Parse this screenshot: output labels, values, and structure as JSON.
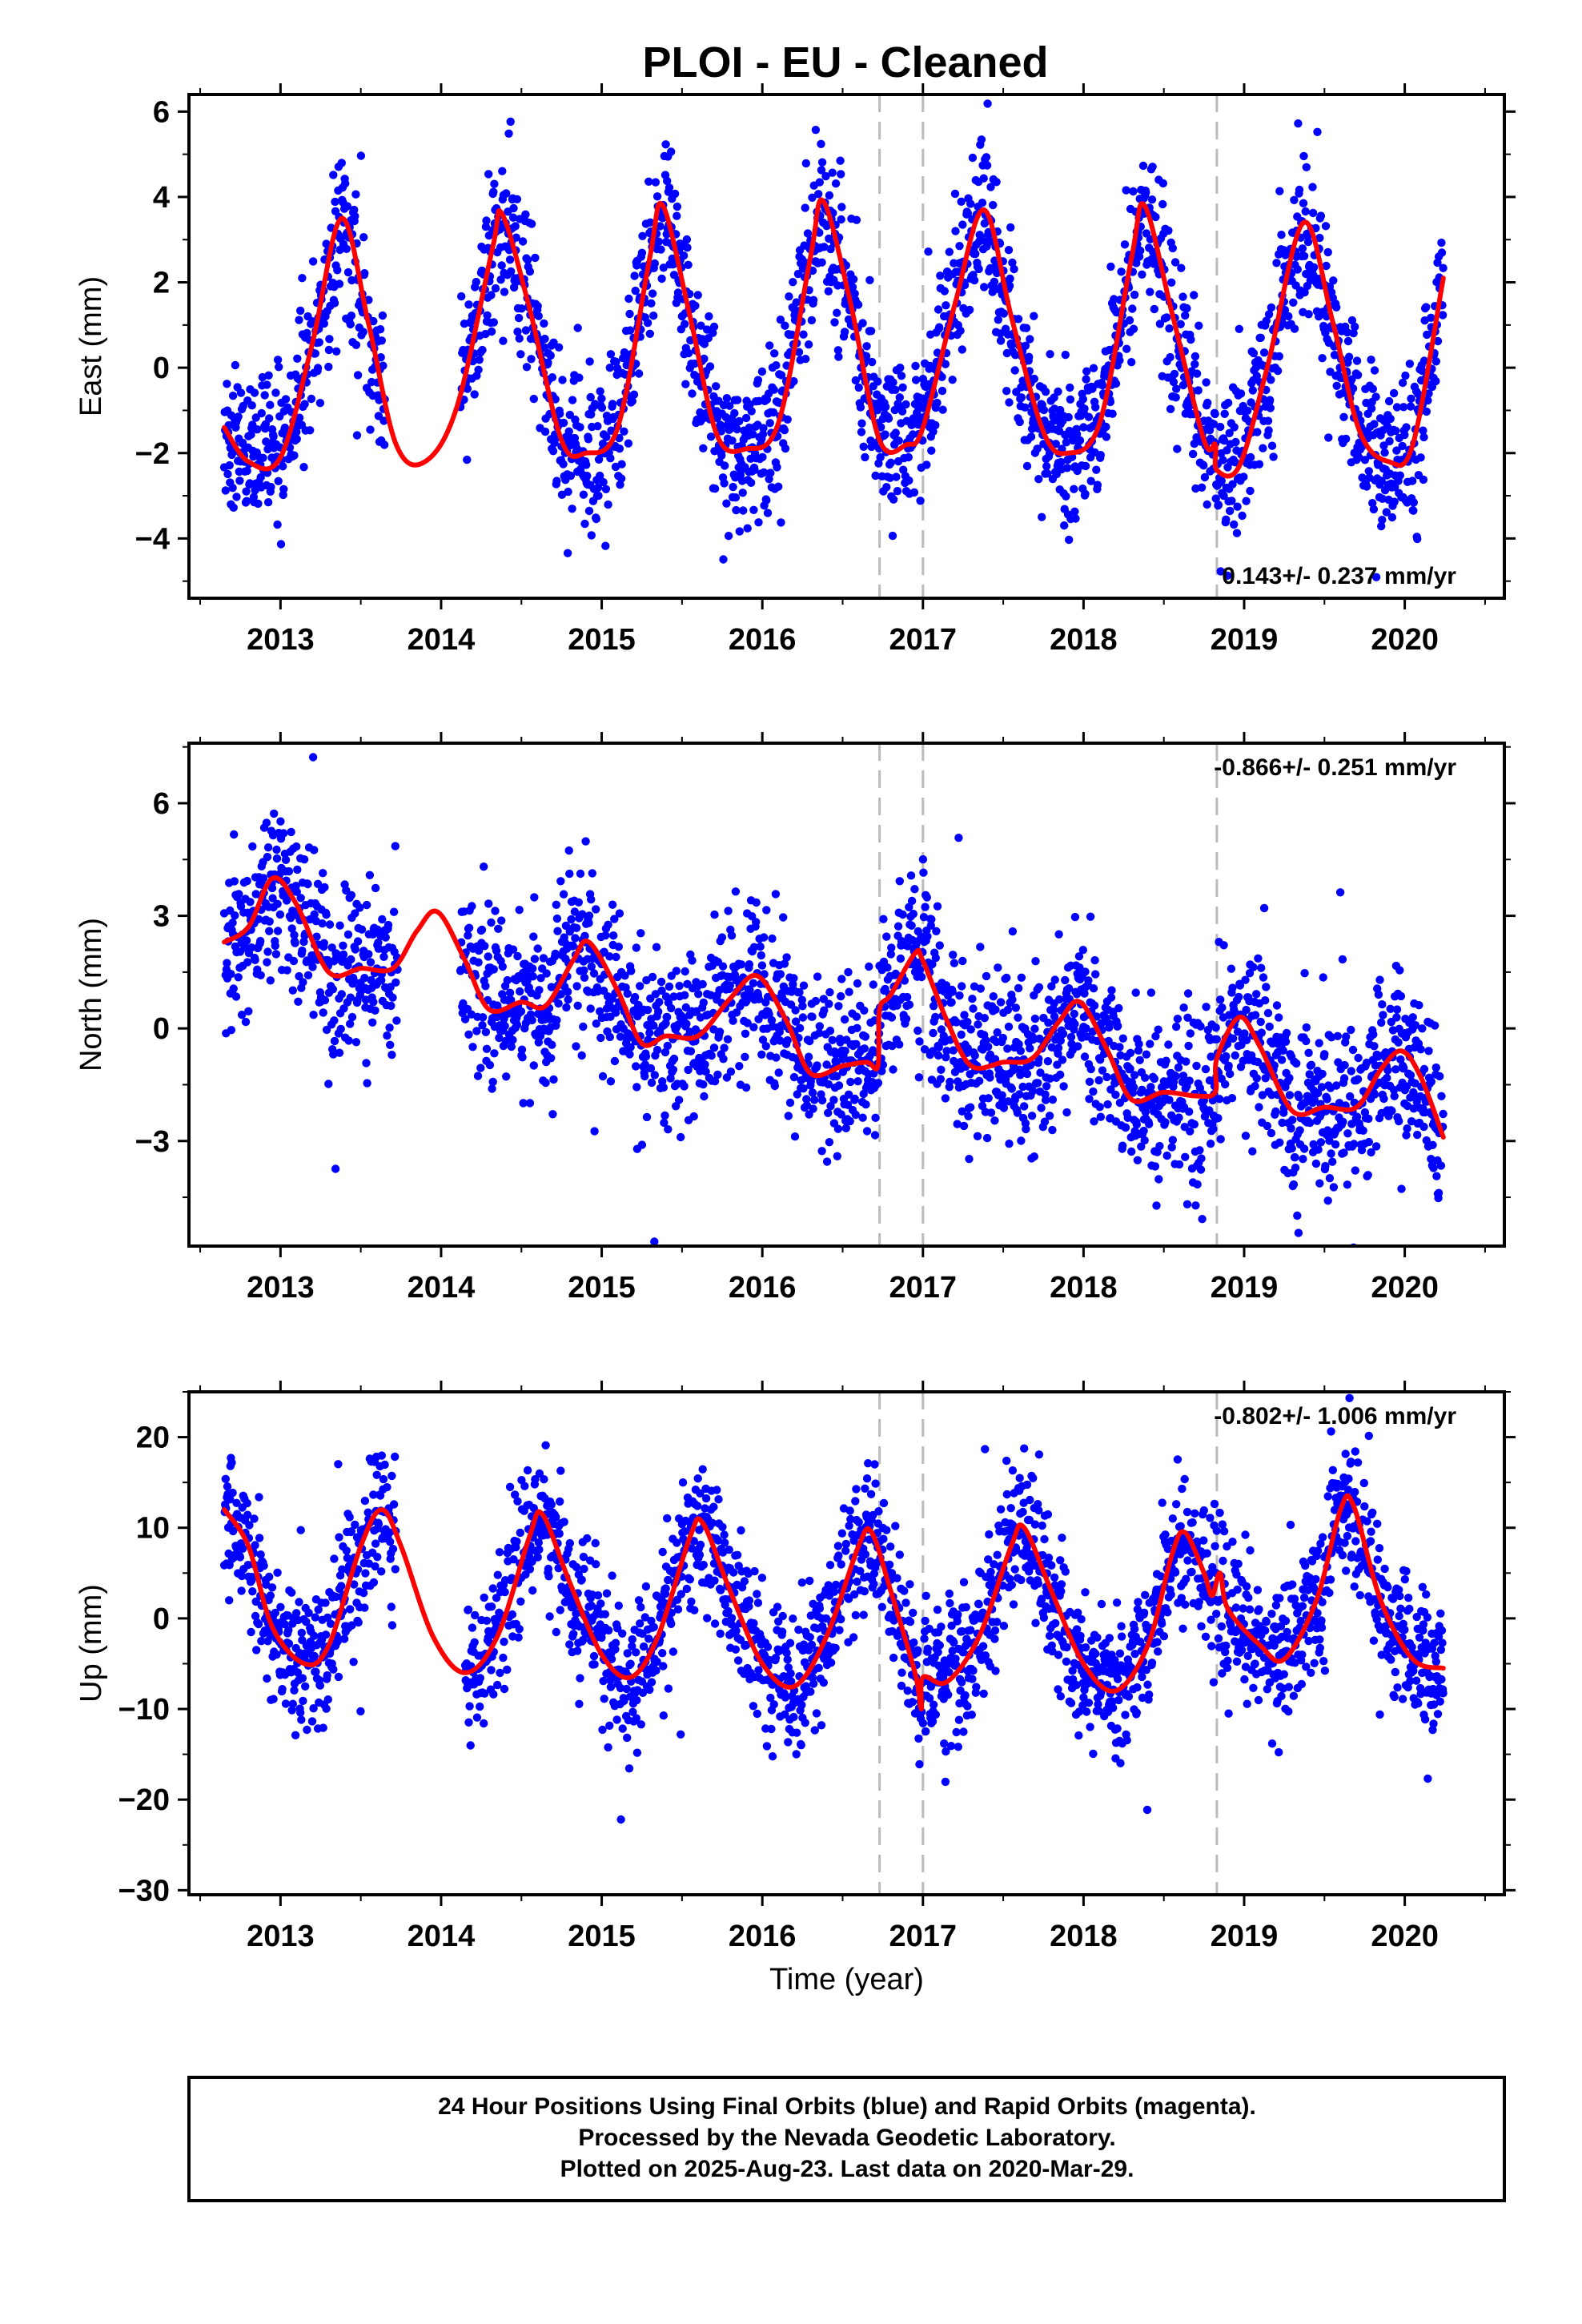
{
  "figure": {
    "title": "PLOI  - EU - Cleaned",
    "footer": [
      "24 Hour Positions Using Final Orbits (blue) and Rapid Orbits (magenta).",
      "Processed by the Nevada Geodetic Laboratory.",
      "Plotted on 2025-Aug-23. Last data on 2020-Mar-29."
    ]
  },
  "colors": {
    "points": "#0000ff",
    "fit": "#ff0000",
    "event_lines": "#bbbbbb",
    "frame": "#000000"
  },
  "chart_data": [
    {
      "type": "scatter",
      "name": "east",
      "ylabel": "East (mm)",
      "xlabel": "",
      "rate_text": "0.143+/- 0.237 mm/yr",
      "rate_position": "bottom-right",
      "xlim": [
        2012.43,
        2020.62
      ],
      "ylim": [
        -5.4,
        6.4
      ],
      "xticks": [
        2013,
        2014,
        2015,
        2016,
        2017,
        2018,
        2019,
        2020
      ],
      "yticks": [
        -4,
        -2,
        0,
        2,
        4,
        6
      ],
      "grid": false,
      "event_lines": [
        2016.73,
        2017.0,
        2018.83
      ],
      "model": {
        "offset": 0.7,
        "amp1": 2.7,
        "phase1": 2013.1,
        "amp2": 0.8,
        "phase2": 2013.35,
        "noise": 0.9,
        "gap": [
          2013.65,
          2014.12
        ]
      },
      "fit_knots": [
        [
          2012.65,
          -1.4
        ],
        [
          2012.8,
          -2.2
        ],
        [
          2013.0,
          -2.1
        ],
        [
          2013.2,
          0.6
        ],
        [
          2013.38,
          3.5
        ],
        [
          2013.55,
          1.0
        ],
        [
          2013.72,
          -1.8
        ],
        [
          2013.9,
          -2.2
        ],
        [
          2014.1,
          -0.9
        ],
        [
          2014.32,
          2.8
        ],
        [
          2014.38,
          3.6
        ],
        [
          2014.55,
          1.4
        ],
        [
          2014.75,
          -1.7
        ],
        [
          2014.9,
          -2.0
        ],
        [
          2015.1,
          -1.4
        ],
        [
          2015.3,
          2.6
        ],
        [
          2015.38,
          3.8
        ],
        [
          2015.55,
          1.2
        ],
        [
          2015.72,
          -1.6
        ],
        [
          2015.9,
          -1.9
        ],
        [
          2016.1,
          -1.3
        ],
        [
          2016.3,
          2.6
        ],
        [
          2016.38,
          3.9
        ],
        [
          2016.55,
          1.5
        ],
        [
          2016.73,
          -1.7
        ],
        [
          2016.9,
          -1.8
        ],
        [
          2017.0,
          -1.4
        ],
        [
          2017.2,
          1.5
        ],
        [
          2017.38,
          3.7
        ],
        [
          2017.55,
          1.2
        ],
        [
          2017.75,
          -1.5
        ],
        [
          2017.9,
          -2.0
        ],
        [
          2018.1,
          -1.3
        ],
        [
          2018.3,
          2.6
        ],
        [
          2018.38,
          3.8
        ],
        [
          2018.55,
          1.3
        ],
        [
          2018.75,
          -1.7
        ],
        [
          2018.82,
          -1.8
        ],
        [
          2018.83,
          -2.4
        ],
        [
          2018.97,
          -2.3
        ],
        [
          2019.15,
          0.1
        ],
        [
          2019.37,
          3.4
        ],
        [
          2019.55,
          1.1
        ],
        [
          2019.72,
          -1.5
        ],
        [
          2019.9,
          -2.2
        ],
        [
          2020.05,
          -1.8
        ],
        [
          2020.24,
          2.1
        ]
      ]
    },
    {
      "type": "scatter",
      "name": "north",
      "ylabel": "North (mm)",
      "xlabel": "",
      "rate_text": "-0.866+/- 0.251 mm/yr",
      "rate_position": "top-right",
      "xlim": [
        2012.43,
        2020.62
      ],
      "ylim": [
        -5.8,
        7.6
      ],
      "xticks": [
        2013,
        2014,
        2015,
        2016,
        2017,
        2018,
        2019,
        2020
      ],
      "yticks": [
        -3,
        0,
        3,
        6
      ],
      "grid": false,
      "event_lines": [
        2016.73,
        2017.0,
        2018.83
      ],
      "model": {
        "offset": 0.0,
        "amp1": 1.0,
        "phase1": 2012.98,
        "amp2": 0.4,
        "phase2": 2013.2,
        "noise": 1.1,
        "gap": [
          2013.73,
          2014.12
        ]
      },
      "fit_knots": [
        [
          2012.65,
          2.3
        ],
        [
          2012.8,
          2.7
        ],
        [
          2012.95,
          4.0
        ],
        [
          2013.1,
          3.3
        ],
        [
          2013.3,
          1.5
        ],
        [
          2013.5,
          1.6
        ],
        [
          2013.7,
          1.6
        ],
        [
          2013.85,
          2.6
        ],
        [
          2013.98,
          3.1
        ],
        [
          2014.15,
          1.8
        ],
        [
          2014.3,
          0.5
        ],
        [
          2014.5,
          0.7
        ],
        [
          2014.65,
          0.6
        ],
        [
          2014.82,
          1.8
        ],
        [
          2014.92,
          2.3
        ],
        [
          2015.1,
          1.0
        ],
        [
          2015.25,
          -0.4
        ],
        [
          2015.4,
          -0.2
        ],
        [
          2015.6,
          -0.2
        ],
        [
          2015.8,
          0.8
        ],
        [
          2015.97,
          1.4
        ],
        [
          2016.15,
          0.2
        ],
        [
          2016.3,
          -1.2
        ],
        [
          2016.5,
          -1.0
        ],
        [
          2016.65,
          -0.9
        ],
        [
          2016.72,
          -1.0
        ],
        [
          2016.73,
          0.5
        ],
        [
          2016.8,
          0.9
        ],
        [
          2016.95,
          2.0
        ],
        [
          2017.0,
          1.8
        ],
        [
          2017.15,
          0.2
        ],
        [
          2017.3,
          -1.0
        ],
        [
          2017.5,
          -0.9
        ],
        [
          2017.68,
          -0.8
        ],
        [
          2017.85,
          0.2
        ],
        [
          2017.98,
          0.7
        ],
        [
          2018.15,
          -0.6
        ],
        [
          2018.3,
          -1.9
        ],
        [
          2018.5,
          -1.7
        ],
        [
          2018.7,
          -1.8
        ],
        [
          2018.82,
          -1.7
        ],
        [
          2018.83,
          -0.8
        ],
        [
          2018.97,
          0.3
        ],
        [
          2019.1,
          -0.5
        ],
        [
          2019.3,
          -2.2
        ],
        [
          2019.5,
          -2.1
        ],
        [
          2019.7,
          -2.1
        ],
        [
          2019.85,
          -1.1
        ],
        [
          2019.98,
          -0.6
        ],
        [
          2020.1,
          -1.3
        ],
        [
          2020.24,
          -2.9
        ]
      ]
    },
    {
      "type": "scatter",
      "name": "up",
      "ylabel": "Up (mm)",
      "xlabel": "Time (year)",
      "rate_text": "-0.802+/- 1.006 mm/yr",
      "rate_position": "top-right",
      "xlim": [
        2012.43,
        2020.62
      ],
      "ylim": [
        -30.5,
        25.0
      ],
      "xticks": [
        2013,
        2014,
        2015,
        2016,
        2017,
        2018,
        2019,
        2020
      ],
      "yticks": [
        -30,
        -20,
        -10,
        0,
        10,
        20
      ],
      "grid": false,
      "event_lines": [
        2016.73,
        2017.0,
        2018.83
      ],
      "model": {
        "offset": 1.5,
        "amp1": 9.0,
        "phase1": 2013.38,
        "amp2": 2.5,
        "phase2": 2013.6,
        "noise": 3.8,
        "gap": [
          2013.72,
          2014.15
        ]
      },
      "fit_knots": [
        [
          2012.65,
          12.0
        ],
        [
          2012.8,
          8.0
        ],
        [
          2012.95,
          -1.0
        ],
        [
          2013.15,
          -5.0
        ],
        [
          2013.3,
          -3.0
        ],
        [
          2013.5,
          8.0
        ],
        [
          2013.63,
          12.0
        ],
        [
          2013.75,
          8.0
        ],
        [
          2013.95,
          -2.0
        ],
        [
          2014.15,
          -6.0
        ],
        [
          2014.35,
          -2.0
        ],
        [
          2014.55,
          9.0
        ],
        [
          2014.63,
          11.5
        ],
        [
          2014.8,
          4.0
        ],
        [
          2015.0,
          -4.0
        ],
        [
          2015.18,
          -6.5
        ],
        [
          2015.35,
          -2.0
        ],
        [
          2015.55,
          9.0
        ],
        [
          2015.63,
          10.5
        ],
        [
          2015.8,
          3.0
        ],
        [
          2016.0,
          -5.0
        ],
        [
          2016.2,
          -7.5
        ],
        [
          2016.4,
          -2.0
        ],
        [
          2016.6,
          8.0
        ],
        [
          2016.68,
          9.5
        ],
        [
          2016.8,
          3.0
        ],
        [
          2016.95,
          -6.0
        ],
        [
          2016.99,
          -10.0
        ],
        [
          2017.0,
          -6.5
        ],
        [
          2017.15,
          -7.0
        ],
        [
          2017.35,
          -2.0
        ],
        [
          2017.55,
          8.0
        ],
        [
          2017.63,
          10.0
        ],
        [
          2017.8,
          3.0
        ],
        [
          2018.0,
          -5.0
        ],
        [
          2018.2,
          -8.0
        ],
        [
          2018.4,
          -3.0
        ],
        [
          2018.55,
          7.0
        ],
        [
          2018.63,
          9.5
        ],
        [
          2018.75,
          5.0
        ],
        [
          2018.8,
          2.5
        ],
        [
          2018.85,
          5.0
        ],
        [
          2018.9,
          1.0
        ],
        [
          2019.1,
          -3.0
        ],
        [
          2019.25,
          -4.5
        ],
        [
          2019.45,
          2.0
        ],
        [
          2019.6,
          12.0
        ],
        [
          2019.68,
          12.5
        ],
        [
          2019.85,
          2.0
        ],
        [
          2020.05,
          -4.5
        ],
        [
          2020.24,
          -5.5
        ]
      ]
    }
  ]
}
